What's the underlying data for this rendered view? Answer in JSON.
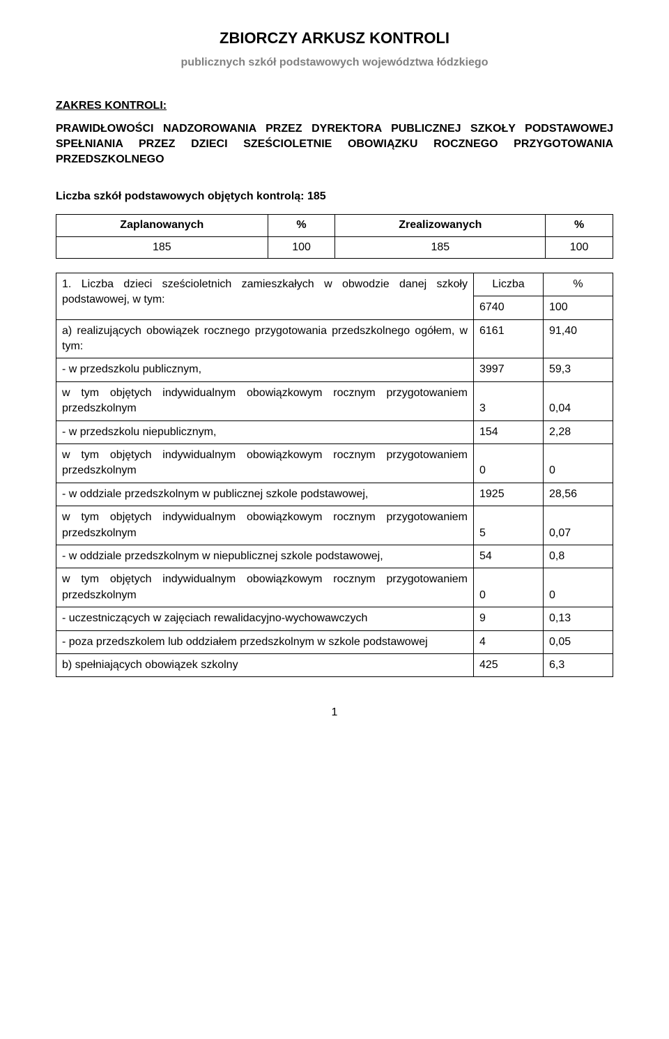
{
  "header": {
    "title": "ZBIORCZY ARKUSZ KONTROLI",
    "subtitle": "publicznych szkół podstawowych województwa łódzkiego"
  },
  "scope": {
    "label": "ZAKRES KONTROLI:",
    "body": "PRAWIDŁOWOŚCI NADZOROWANIA PRZEZ DYREKTORA PUBLICZNEJ SZKOŁY PODSTAWOWEJ SPEŁNIANIA PRZEZ DZIECI SZEŚCIOLETNIE OBOWIĄZKU ROCZNEGO PRZYGOTOWANIA PRZEDSZKOLNEGO"
  },
  "count_line": "Liczba szkół podstawowych objętych kontrolą: 185",
  "summary_table": {
    "headers": [
      "Zaplanowanych",
      "%",
      "Zrealizowanych",
      "%"
    ],
    "row": [
      "185",
      "100",
      "185",
      "100"
    ]
  },
  "main_table": {
    "item_num": "1.",
    "item_text": "Liczba dzieci sześcioletnich zamieszkałych w obwodzie danej szkoły podstawowej, w tym:",
    "hdr_liczba": "Liczba",
    "hdr_pct": "%",
    "total": {
      "liczba": "6740",
      "pct": "100"
    },
    "rows": [
      {
        "label": "a) realizujących obowiązek rocznego przygotowania przedszkolnego ogółem, w tym:",
        "liczba": "6161",
        "pct": "91,40"
      },
      {
        "label": "- w przedszkolu publicznym,",
        "liczba": "3997",
        "pct": "59,3"
      },
      {
        "label": "w tym objętych indywidualnym obowiązkowym rocznym przygotowaniem przedszkolnym",
        "liczba": "3",
        "pct": "0,04"
      },
      {
        "label": "- w przedszkolu niepublicznym,",
        "liczba": "154",
        "pct": "2,28"
      },
      {
        "label": "w tym objętych indywidualnym obowiązkowym rocznym przygotowaniem przedszkolnym",
        "liczba": "0",
        "pct": "0"
      },
      {
        "label": "- w oddziale przedszkolnym w publicznej szkole podstawowej,",
        "liczba": "1925",
        "pct": "28,56"
      },
      {
        "label": "w tym objętych indywidualnym obowiązkowym rocznym przygotowaniem przedszkolnym",
        "liczba": "5",
        "pct": "0,07"
      },
      {
        "label": "- w oddziale przedszkolnym w niepublicznej szkole podstawowej,",
        "liczba": "54",
        "pct": "0,8"
      },
      {
        "label": "w tym objętych indywidualnym obowiązkowym rocznym przygotowaniem przedszkolnym",
        "liczba": "0",
        "pct": "0"
      },
      {
        "label": "- uczestniczących w zajęciach rewalidacyjno-wychowawczych",
        "liczba": "9",
        "pct": "0,13"
      },
      {
        "label": "- poza przedszkolem lub oddziałem przedszkolnym w szkole podstawowej",
        "liczba": "4",
        "pct": "0,05"
      },
      {
        "label": "b) spełniających obowiązek szkolny",
        "liczba": "425",
        "pct": "6,3"
      }
    ]
  },
  "page_number": "1",
  "colors": {
    "text": "#000000",
    "subtitle": "#808080",
    "background": "#ffffff",
    "border": "#000000"
  },
  "typography": {
    "title_fontsize": 22,
    "body_fontsize": 16,
    "font_family": "Arial"
  }
}
